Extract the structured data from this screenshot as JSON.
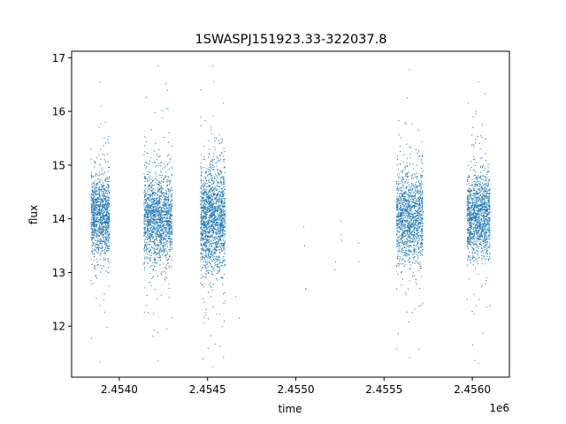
{
  "chart_data": {
    "type": "scatter",
    "title": "1SWASPJ151923.33-322037.8",
    "xlabel": "time",
    "ylabel": "flux",
    "x_offset_label": "1e6",
    "xlim": [
      2453730,
      2456210
    ],
    "ylim": [
      11.05,
      17.12
    ],
    "x_ticks": [
      2454000,
      2454500,
      2455000,
      2455500,
      2456000
    ],
    "x_tick_labels": [
      "2.4540",
      "2.4545",
      "2.4550",
      "2.4555",
      "2.4560"
    ],
    "y_ticks": [
      12,
      13,
      14,
      15,
      16,
      17
    ],
    "y_tick_labels": [
      "12",
      "13",
      "14",
      "15",
      "16",
      "17"
    ],
    "grid": false,
    "legend": "none",
    "marker_color": "#1f77b4",
    "series": [
      {
        "clusters": [
          {
            "x_range": [
              2453840,
              2453945
            ],
            "center": 14.05,
            "spread": 0.38,
            "n": 1100,
            "range": [
              11.33,
              16.55
            ]
          },
          {
            "x_range": [
              2454140,
              2454300
            ],
            "center": 14.0,
            "spread": 0.42,
            "n": 1500,
            "range": [
              11.35,
              16.85
            ]
          },
          {
            "x_range": [
              2454460,
              2454600
            ],
            "center": 14.0,
            "spread": 0.48,
            "n": 1600,
            "range": [
              11.25,
              16.85
            ]
          },
          {
            "x_range": [
              2455570,
              2455720
            ],
            "center": 14.05,
            "spread": 0.42,
            "n": 1300,
            "range": [
              11.42,
              16.78
            ]
          },
          {
            "x_range": [
              2455970,
              2456100
            ],
            "center": 14.05,
            "spread": 0.38,
            "n": 1300,
            "range": [
              11.3,
              16.55
            ]
          }
        ],
        "points": [
          {
            "x": 2454660,
            "y": 12.55
          },
          {
            "x": 2454680,
            "y": 12.15
          },
          {
            "x": 2455045,
            "y": 13.85
          },
          {
            "x": 2455050,
            "y": 13.5
          },
          {
            "x": 2455055,
            "y": 12.7
          },
          {
            "x": 2455060,
            "y": 12.68
          },
          {
            "x": 2455220,
            "y": 13.05
          },
          {
            "x": 2455225,
            "y": 13.2
          },
          {
            "x": 2455255,
            "y": 13.95
          },
          {
            "x": 2455258,
            "y": 13.7
          },
          {
            "x": 2455260,
            "y": 13.6
          },
          {
            "x": 2455355,
            "y": 13.55
          },
          {
            "x": 2455358,
            "y": 13.2
          }
        ]
      }
    ]
  }
}
